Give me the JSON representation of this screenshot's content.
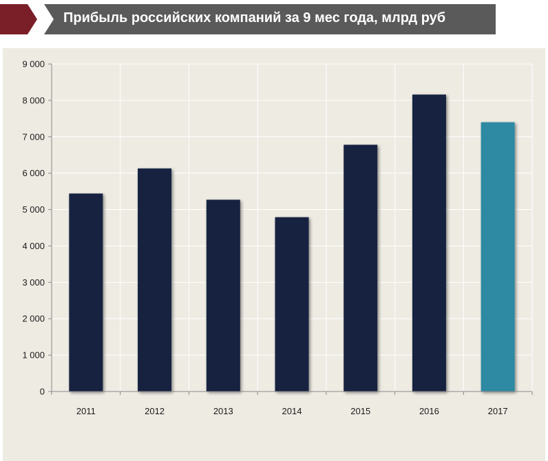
{
  "header": {
    "title": "Прибыль российских компаний за 9 мес года, млрд руб"
  },
  "colors": {
    "logo_red": "#7a1f28",
    "banner_gray": "#5a5a5a",
    "bar_dark": "#13233f",
    "bar_highlight": "#2f89a2",
    "plot_background": "#eeebe3"
  },
  "chart_data": {
    "type": "bar",
    "title": "Прибыль российских компаний за 9 мес года, млрд руб",
    "categories": [
      "2011",
      "2012",
      "2013",
      "2014",
      "2015",
      "2016",
      "2017"
    ],
    "values": [
      5440,
      6130,
      5270,
      4790,
      6780,
      8160,
      7400
    ],
    "highlight_category": "2017",
    "ylim": [
      0,
      9000
    ],
    "yticks": [
      0,
      1000,
      2000,
      3000,
      4000,
      5000,
      6000,
      7000,
      8000,
      9000
    ],
    "ytick_labels": [
      "0",
      "1 000",
      "2 000",
      "3 000",
      "4 000",
      "5 000",
      "6 000",
      "7 000",
      "8 000",
      "9 000"
    ],
    "xlabel": "",
    "ylabel": "",
    "grid": true,
    "legend": "none"
  }
}
